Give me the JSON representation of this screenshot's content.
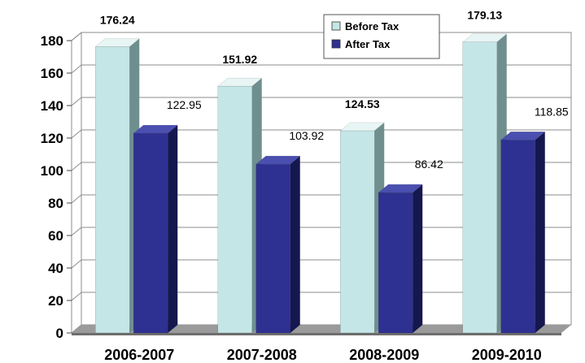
{
  "chart_data": {
    "type": "bar",
    "categories": [
      "2006-2007",
      "2007-2008",
      "2008-2009",
      "2009-2010"
    ],
    "series": [
      {
        "name": "Before Tax",
        "values": [
          176.24,
          151.92,
          124.53,
          179.13
        ],
        "labels": [
          "176.24",
          "151.92",
          "124.53",
          "179.13"
        ]
      },
      {
        "name": "After Tax",
        "values": [
          122.95,
          103.92,
          86.42,
          118.85
        ],
        "labels": [
          "122.95",
          "103.92",
          "86.42",
          "118.85"
        ]
      }
    ],
    "title": "",
    "xlabel": "",
    "ylabel": "",
    "ylim": [
      0,
      180
    ],
    "yticks": [
      "0",
      "20",
      "40",
      "60",
      "80",
      "100",
      "120",
      "140",
      "160",
      "180"
    ],
    "grid": true,
    "legend": "top-right",
    "colors": {
      "before_front": "#c5e6e6",
      "before_side": "#6f8f8f",
      "before_top": "#e8f5f5",
      "after_front": "#2e3191",
      "after_side": "#15174f",
      "after_top": "#4a4fb0",
      "floor": "#9a9a9a"
    }
  }
}
